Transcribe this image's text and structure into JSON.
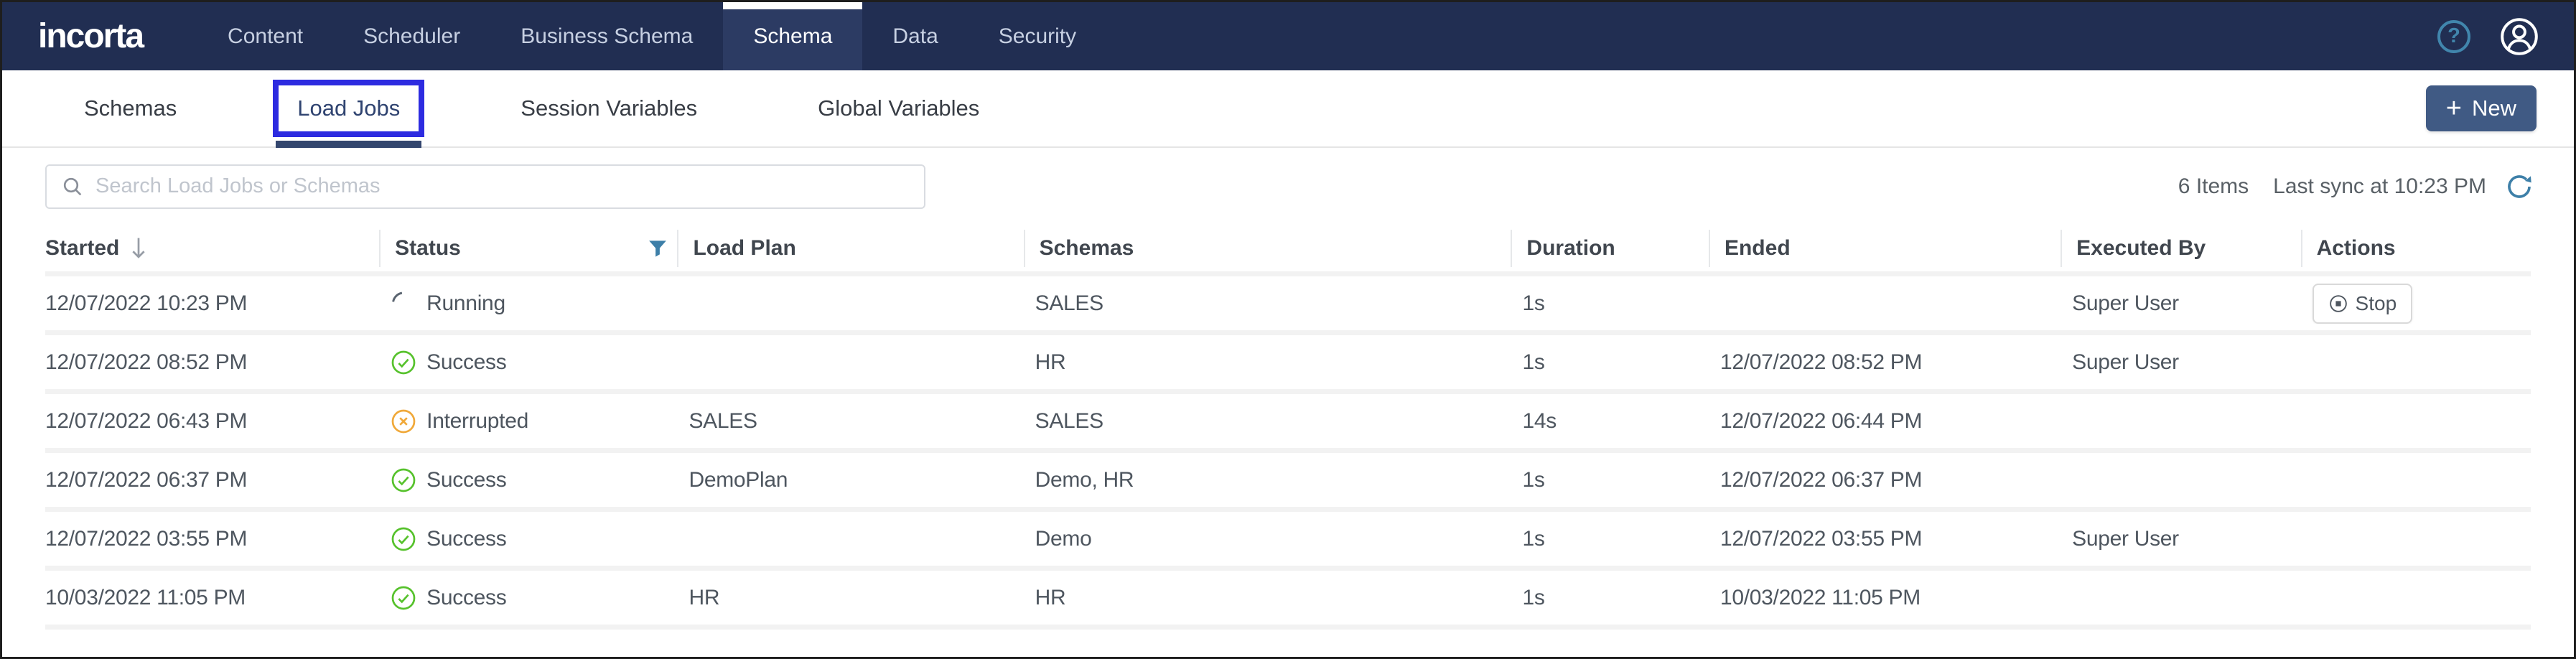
{
  "nav": {
    "brand": "incorta",
    "items": [
      {
        "label": "Content",
        "active": false
      },
      {
        "label": "Scheduler",
        "active": false
      },
      {
        "label": "Business Schema",
        "active": false
      },
      {
        "label": "Schema",
        "active": true
      },
      {
        "label": "Data",
        "active": false
      },
      {
        "label": "Security",
        "active": false
      }
    ],
    "help_glyph": "?"
  },
  "tabs": {
    "items": [
      {
        "label": "Schemas",
        "active": false
      },
      {
        "label": "Load Jobs",
        "active": true,
        "annotated": true
      },
      {
        "label": "Session Variables",
        "active": false
      },
      {
        "label": "Global Variables",
        "active": false
      }
    ],
    "new_button": {
      "plus": "+",
      "label": "New"
    }
  },
  "toolbar": {
    "search_placeholder": "Search Load Jobs or Schemas",
    "items_count": "6 Items",
    "last_sync": "Last sync at 10:23 PM"
  },
  "table": {
    "columns": [
      {
        "key": "started",
        "label": "Started",
        "sorted": "desc"
      },
      {
        "key": "status",
        "label": "Status",
        "filtered": true
      },
      {
        "key": "load_plan",
        "label": "Load Plan"
      },
      {
        "key": "schemas",
        "label": "Schemas"
      },
      {
        "key": "duration",
        "label": "Duration"
      },
      {
        "key": "ended",
        "label": "Ended"
      },
      {
        "key": "executed_by",
        "label": "Executed By"
      },
      {
        "key": "actions",
        "label": "Actions"
      }
    ],
    "rows": [
      {
        "started": "12/07/2022 10:23 PM",
        "status": {
          "kind": "running",
          "label": "Running"
        },
        "load_plan": "",
        "schemas": "SALES",
        "duration": "1s",
        "ended": "",
        "executed_by": "Super User",
        "actions": [
          {
            "label": "Stop"
          }
        ]
      },
      {
        "started": "12/07/2022 08:52 PM",
        "status": {
          "kind": "success",
          "label": "Success"
        },
        "load_plan": "",
        "schemas": "HR",
        "duration": "1s",
        "ended": "12/07/2022 08:52 PM",
        "executed_by": "Super User",
        "actions": []
      },
      {
        "started": "12/07/2022 06:43 PM",
        "status": {
          "kind": "interrupted",
          "label": "Interrupted"
        },
        "load_plan": "SALES",
        "schemas": "SALES",
        "duration": "14s",
        "ended": "12/07/2022 06:44 PM",
        "executed_by": "",
        "actions": []
      },
      {
        "started": "12/07/2022 06:37 PM",
        "status": {
          "kind": "success",
          "label": "Success"
        },
        "load_plan": "DemoPlan",
        "schemas": "Demo, HR",
        "duration": "1s",
        "ended": "12/07/2022 06:37 PM",
        "executed_by": "",
        "actions": []
      },
      {
        "started": "12/07/2022 03:55 PM",
        "status": {
          "kind": "success",
          "label": "Success"
        },
        "load_plan": "",
        "schemas": "Demo",
        "duration": "1s",
        "ended": "12/07/2022 03:55 PM",
        "executed_by": "Super User",
        "actions": []
      },
      {
        "started": "10/03/2022 11:05 PM",
        "status": {
          "kind": "success",
          "label": "Success"
        },
        "load_plan": "HR",
        "schemas": "HR",
        "duration": "1s",
        "ended": "10/03/2022 11:05 PM",
        "executed_by": "",
        "actions": []
      }
    ]
  },
  "colors": {
    "nav_bg": "#212e52",
    "nav_active_bg": "#2c3b63",
    "accent_blue": "#3d7fa8",
    "annotation_blue": "#2d2be0",
    "active_tab_underline": "#33466e",
    "success_green": "#57c22d",
    "interrupted_orange": "#f0a93a",
    "running_gray": "#5a6470",
    "new_button_bg": "#405a84"
  }
}
